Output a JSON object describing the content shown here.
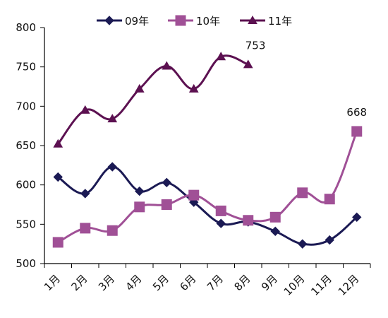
{
  "chart_data": {
    "type": "line",
    "categories": [
      "1月",
      "2月",
      "3月",
      "4月",
      "5月",
      "6月",
      "7月",
      "8月",
      "9月",
      "10月",
      "11月",
      "12月"
    ],
    "ylim": [
      500,
      800
    ],
    "yticks": [
      500,
      550,
      600,
      650,
      700,
      750,
      800
    ],
    "grid": false,
    "legend": "top",
    "series": [
      {
        "name": "09年",
        "color": "#1b1a54",
        "marker": "diamond",
        "values": [
          610,
          589,
          623,
          592,
          603,
          578,
          551,
          553,
          541,
          525,
          530,
          559
        ]
      },
      {
        "name": "10年",
        "color": "#a05096",
        "marker": "square",
        "values": [
          527,
          545,
          542,
          572,
          575,
          587,
          567,
          555,
          559,
          590,
          582,
          668
        ]
      },
      {
        "name": "11年",
        "color": "#5c1151",
        "marker": "triangle",
        "values": [
          652,
          695,
          684,
          722,
          751,
          722,
          763,
          753,
          null,
          null,
          null,
          null
        ]
      }
    ],
    "annotations": [
      {
        "text": "753",
        "series": 2,
        "index": 7
      },
      {
        "text": "668",
        "series": 1,
        "index": 11
      }
    ]
  }
}
